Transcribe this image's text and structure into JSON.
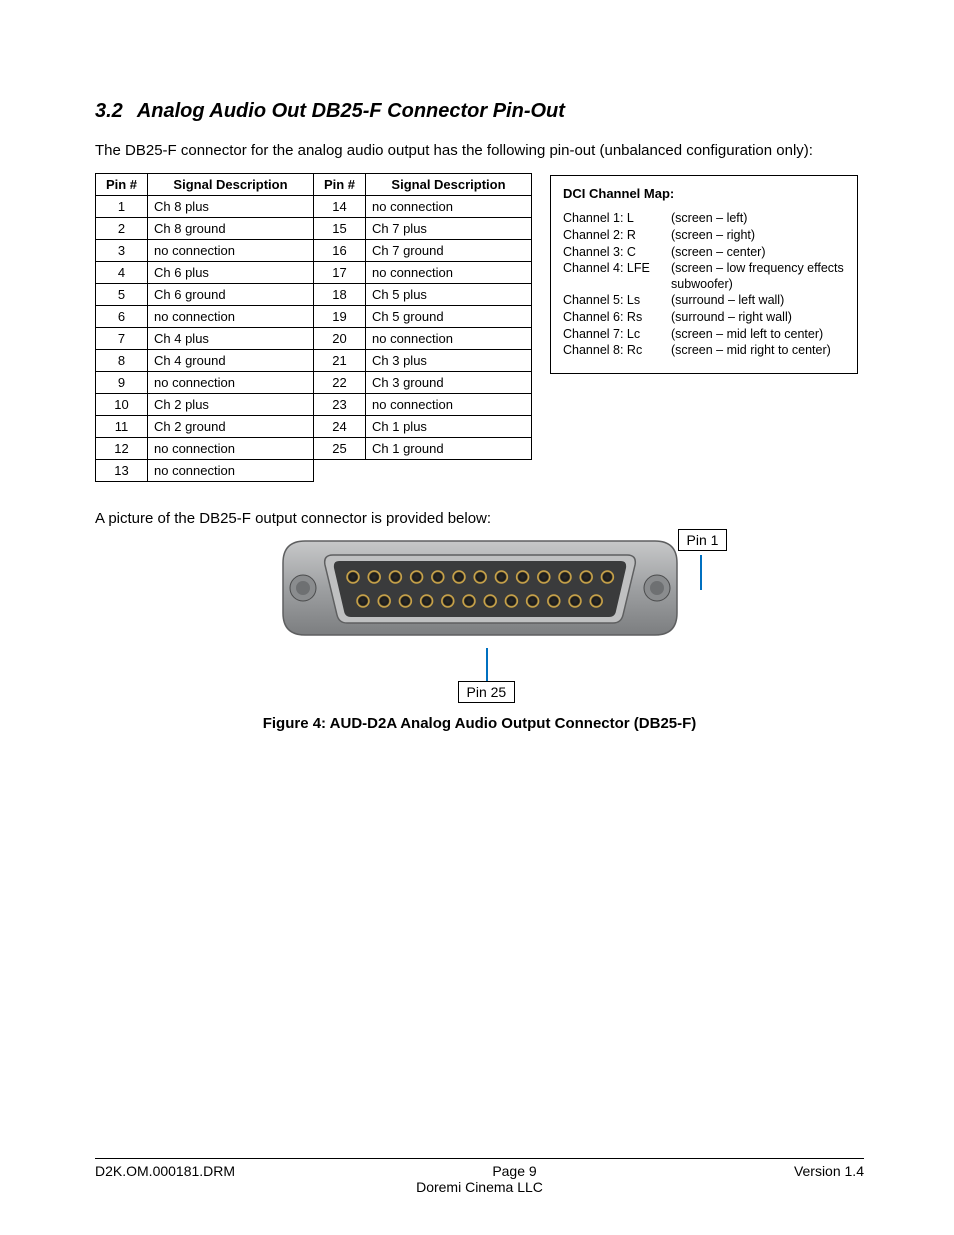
{
  "heading": {
    "number": "3.2",
    "title": "Analog Audio Out DB25-F Connector Pin-Out"
  },
  "intro": "The DB25-F connector for the analog audio output has the following pin-out (unbalanced configuration only):",
  "pinout": {
    "headers": {
      "pin": "Pin #",
      "desc": "Signal Description"
    },
    "left": [
      {
        "pin": "1",
        "desc": "Ch 8 plus"
      },
      {
        "pin": "2",
        "desc": "Ch 8 ground"
      },
      {
        "pin": "3",
        "desc": "no connection"
      },
      {
        "pin": "4",
        "desc": "Ch 6 plus"
      },
      {
        "pin": "5",
        "desc": "Ch 6 ground"
      },
      {
        "pin": "6",
        "desc": "no connection"
      },
      {
        "pin": "7",
        "desc": "Ch 4 plus"
      },
      {
        "pin": "8",
        "desc": "Ch 4 ground"
      },
      {
        "pin": "9",
        "desc": "no connection"
      },
      {
        "pin": "10",
        "desc": "Ch 2 plus"
      },
      {
        "pin": "11",
        "desc": "Ch 2 ground"
      },
      {
        "pin": "12",
        "desc": "no connection"
      },
      {
        "pin": "13",
        "desc": "no connection"
      }
    ],
    "right": [
      {
        "pin": "14",
        "desc": "no connection"
      },
      {
        "pin": "15",
        "desc": "Ch 7 plus"
      },
      {
        "pin": "16",
        "desc": "Ch 7 ground"
      },
      {
        "pin": "17",
        "desc": "no connection"
      },
      {
        "pin": "18",
        "desc": "Ch 5 plus"
      },
      {
        "pin": "19",
        "desc": "Ch 5 ground"
      },
      {
        "pin": "20",
        "desc": "no connection"
      },
      {
        "pin": "21",
        "desc": "Ch 3 plus"
      },
      {
        "pin": "22",
        "desc": "Ch 3 ground"
      },
      {
        "pin": "23",
        "desc": "no connection"
      },
      {
        "pin": "24",
        "desc": "Ch 1 plus"
      },
      {
        "pin": "25",
        "desc": "Ch 1 ground"
      }
    ]
  },
  "dci": {
    "title": "DCI Channel Map:",
    "rows": [
      {
        "label": "Channel 1:  L",
        "desc": "(screen  –  left)"
      },
      {
        "label": "Channel 2:  R",
        "desc": "(screen  –  right)"
      },
      {
        "label": "Channel 3:  C",
        "desc": "(screen  –  center)"
      },
      {
        "label": "Channel 4:  LFE",
        "desc": "(screen  – low frequency effects subwoofer)"
      },
      {
        "label": "Channel 5:  Ls",
        "desc": "(surround  –  left wall)"
      },
      {
        "label": "Channel 6:  Rs",
        "desc": "(surround  –  right wall)"
      },
      {
        "label": "Channel 7:  Lc",
        "desc": "(screen  –  mid left to center)"
      },
      {
        "label": "Channel 8:  Rc",
        "desc": "(screen  –  mid right to center)"
      }
    ]
  },
  "caption_above_figure": "A picture of the DB25-F output connector is provided below:",
  "pin_labels": {
    "top": "Pin 1",
    "bottom": "Pin 25"
  },
  "figure_caption": "Figure 4: AUD-D2A Analog Audio Output Connector (DB25-F)",
  "connector": {
    "shell_color": "#9ea0a2",
    "shell_stroke": "#5e5f60",
    "inner_color": "#3a3b3c",
    "pin_gold": "#c7a24a",
    "pin_dark": "#2b2b2b",
    "highlight": "#cfd0d1"
  },
  "footer": {
    "left": "D2K.OM.000181.DRM",
    "center": "Page 9",
    "right": "Version 1.4",
    "sub": "Doremi Cinema LLC"
  }
}
